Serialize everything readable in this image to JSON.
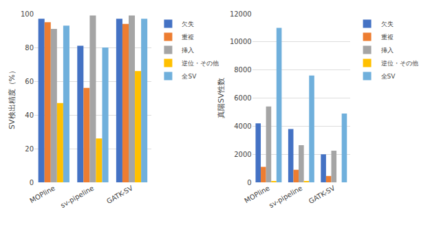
{
  "chart_data": [
    {
      "type": "bar",
      "ylabel": "SV検出精度（%）",
      "categories": [
        "MOPline",
        "sv-pipeline",
        "GATK-SV"
      ],
      "series": [
        {
          "name": "欠失",
          "color": "#4472C4",
          "values": [
            97,
            81,
            97
          ]
        },
        {
          "name": "重複",
          "color": "#ED7D31",
          "values": [
            95,
            56,
            94
          ]
        },
        {
          "name": "挿入",
          "color": "#A5A5A5",
          "values": [
            91,
            99,
            99
          ]
        },
        {
          "name": "逆位・その他",
          "color": "#FFC000",
          "values": [
            47,
            26,
            66
          ]
        },
        {
          "name": "全SV",
          "color": "#70B0DC",
          "values": [
            93,
            80,
            97
          ]
        }
      ],
      "ylim": [
        0,
        100
      ],
      "yticks": [
        0,
        20,
        40,
        60,
        80,
        100
      ],
      "grid": true,
      "legend": "upper left"
    },
    {
      "type": "bar",
      "ylabel": "真陽SV性数",
      "categories": [
        "MOPline",
        "sv-pipeline",
        "GATK-SV"
      ],
      "series": [
        {
          "name": "欠失",
          "color": "#4472C4",
          "values": [
            4200,
            3800,
            2000
          ]
        },
        {
          "name": "重複",
          "color": "#ED7D31",
          "values": [
            1100,
            900,
            450
          ]
        },
        {
          "name": "挿入",
          "color": "#A5A5A5",
          "values": [
            5400,
            2650,
            2250
          ]
        },
        {
          "name": "逆位・その他",
          "color": "#FFC000",
          "values": [
            100,
            50,
            0
          ]
        },
        {
          "name": "全SV",
          "color": "#70B0DC",
          "values": [
            11000,
            7600,
            4900
          ]
        }
      ],
      "ylim": [
        0,
        12000
      ],
      "yticks": [
        0,
        2000,
        4000,
        6000,
        8000,
        10000,
        12000
      ],
      "grid": true,
      "legend": "upper left"
    }
  ]
}
